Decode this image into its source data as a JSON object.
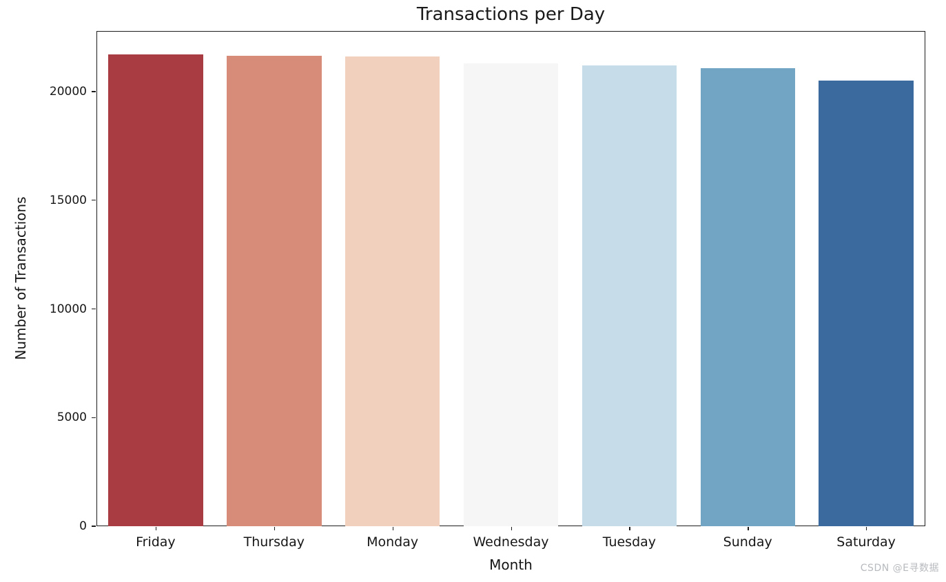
{
  "chart_data": {
    "type": "bar",
    "title": "Transactions per Day",
    "xlabel": "Month",
    "ylabel": "Number of Transactions",
    "categories": [
      "Friday",
      "Thursday",
      "Monday",
      "Wednesday",
      "Tuesday",
      "Sunday",
      "Saturday"
    ],
    "values": [
      21710,
      21650,
      21630,
      21300,
      21200,
      21080,
      20510
    ],
    "bar_colors": [
      "#a93b43",
      "#d78b79",
      "#f1d0bd",
      "#f5f6f5",
      "#c6dce8",
      "#72a5c4",
      "#3a6a9e"
    ],
    "yticks": [
      0,
      5000,
      10000,
      15000,
      20000
    ],
    "ylim": [
      0,
      22790
    ],
    "grid": false,
    "legend_position": "none",
    "bar_width_fraction": 0.8
  },
  "watermark": {
    "text": "CSDN @E寻数据"
  }
}
